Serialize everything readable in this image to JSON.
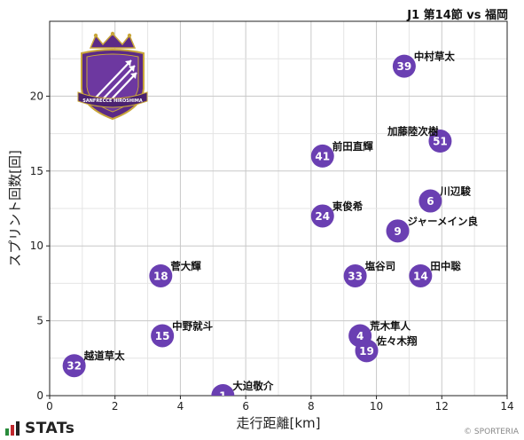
{
  "header": {
    "match_title": "J1 第14節 vs 福岡"
  },
  "footer": {
    "brand": "STATs",
    "credit": "© SPORTERIA"
  },
  "crest": {
    "text": "SANFRECCE HIROSHIMA",
    "icon": "sanfrecce-hiroshima-crest-icon",
    "colors": [
      "#5b2a86",
      "#c9a63a"
    ]
  },
  "colors": {
    "point": "#6a3fb2",
    "point_text": "#ffffff",
    "grid": "#c8c8c8",
    "axis": "#222222"
  },
  "chart_data": {
    "type": "scatter",
    "title": "",
    "xlabel": "走行距離[km]",
    "ylabel": "スプリント回数[回]",
    "xlim": [
      0,
      14
    ],
    "ylim": [
      0,
      25
    ],
    "xticks": [
      0,
      2,
      4,
      6,
      8,
      10,
      12,
      14
    ],
    "yticks": [
      0,
      5,
      10,
      15,
      20
    ],
    "grid": true,
    "points": [
      {
        "number": "39",
        "name": "中村草太",
        "x": 10.85,
        "y": 22
      },
      {
        "number": "51",
        "name": "加藤陸次樹",
        "x": 11.95,
        "y": 17
      },
      {
        "number": "41",
        "name": "前田直輝",
        "x": 8.35,
        "y": 16
      },
      {
        "number": "6",
        "name": "川辺駿",
        "x": 11.65,
        "y": 13
      },
      {
        "number": "24",
        "name": "東俊希",
        "x": 8.35,
        "y": 12
      },
      {
        "number": "9",
        "name": "ジャーメイン良",
        "x": 10.65,
        "y": 11
      },
      {
        "number": "18",
        "name": "菅大輝",
        "x": 3.4,
        "y": 8
      },
      {
        "number": "33",
        "name": "塩谷司",
        "x": 9.35,
        "y": 8
      },
      {
        "number": "14",
        "name": "田中聡",
        "x": 11.35,
        "y": 8
      },
      {
        "number": "15",
        "name": "中野就斗",
        "x": 3.45,
        "y": 4
      },
      {
        "number": "4",
        "name": "荒木隼人",
        "x": 9.5,
        "y": 4
      },
      {
        "number": "19",
        "name": "佐々木翔",
        "x": 9.7,
        "y": 3
      },
      {
        "number": "32",
        "name": "越道草太",
        "x": 0.75,
        "y": 2
      },
      {
        "number": "1",
        "name": "大迫敬介",
        "x": 5.3,
        "y": 0
      }
    ]
  }
}
